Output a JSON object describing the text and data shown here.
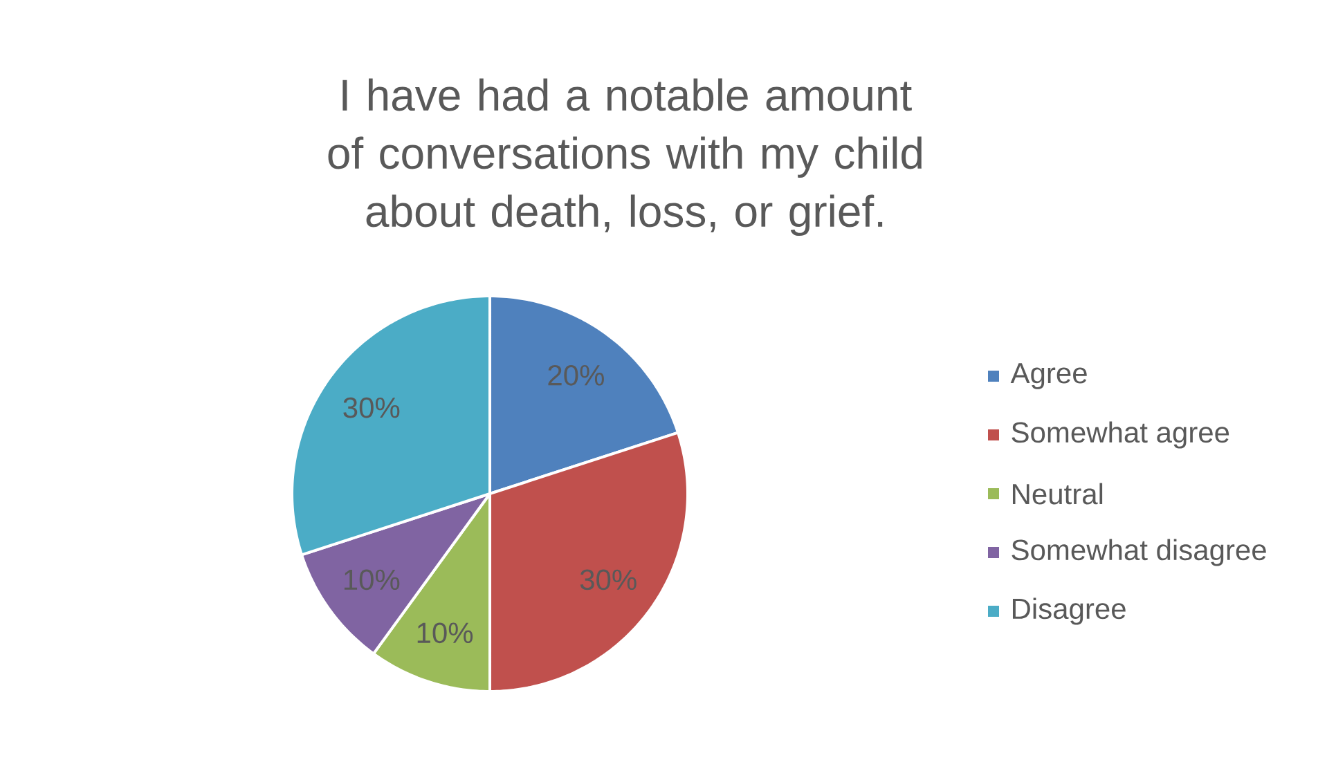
{
  "chart_data": {
    "type": "pie",
    "title": "I have had a notable amount of conversations with my child about death, loss, or grief.",
    "categories": [
      "Agree",
      "Somewhat agree",
      "Neutral",
      "Somewhat disagree",
      "Disagree"
    ],
    "values": [
      20,
      30,
      10,
      10,
      30
    ],
    "value_labels": [
      "20%",
      "30%",
      "10%",
      "10%",
      "30%"
    ],
    "colors": [
      "#4f81bd",
      "#c0504d",
      "#9bbb59",
      "#8064a2",
      "#4bacc6"
    ],
    "legend": "right"
  }
}
